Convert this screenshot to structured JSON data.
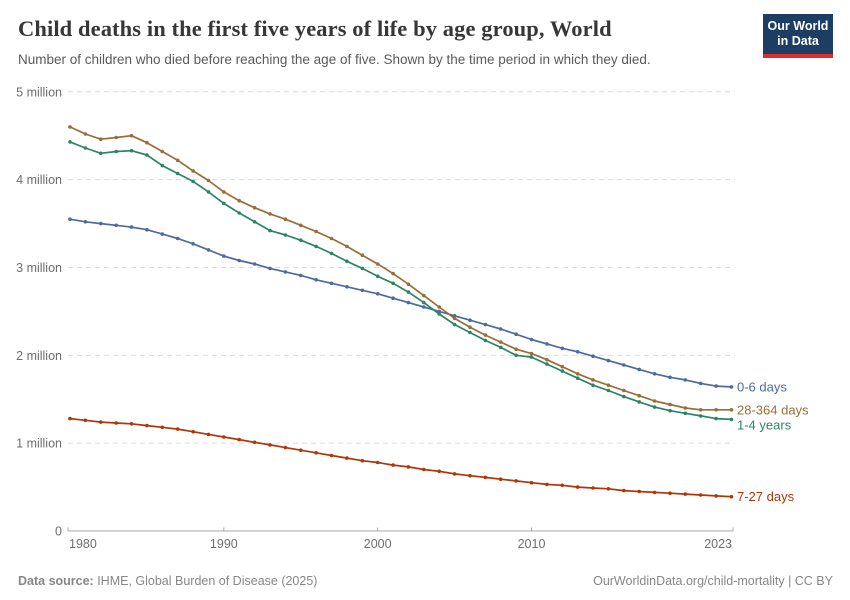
{
  "header": {
    "title": "Child deaths in the first five years of life by age group, World",
    "subtitle": "Number of children who died before reaching the age of five. Shown by the time period in which they died.",
    "logo": {
      "line1": "Our World",
      "line2": "in Data",
      "bg_color": "#1d3d63",
      "bar_color": "#dc2d2d"
    }
  },
  "footer": {
    "source_label": "Data source:",
    "source_text": " IHME, Global Burden of Disease (2025)",
    "right_text": "OurWorldinData.org/child-mortality | CC BY"
  },
  "chart_data": {
    "type": "line",
    "title": "Child deaths in the first five years of life by age group, World",
    "unit": "million deaths per year",
    "grid": "horizontal-dashed",
    "legend_position": "line-end-labels",
    "ylim": [
      0,
      5
    ],
    "xlim": [
      1980,
      2023
    ],
    "x_ticks": [
      1980,
      1990,
      2000,
      2010,
      2023
    ],
    "y_ticks": [
      {
        "value": 0,
        "label": "0"
      },
      {
        "value": 1,
        "label": "1 million"
      },
      {
        "value": 2,
        "label": "2 million"
      },
      {
        "value": 3,
        "label": "3 million"
      },
      {
        "value": 4,
        "label": "4 million"
      },
      {
        "value": 5,
        "label": "5 million"
      }
    ],
    "x": [
      1980,
      1981,
      1982,
      1983,
      1984,
      1985,
      1986,
      1987,
      1988,
      1989,
      1990,
      1991,
      1992,
      1993,
      1994,
      1995,
      1996,
      1997,
      1998,
      1999,
      2000,
      2001,
      2002,
      2003,
      2004,
      2005,
      2006,
      2007,
      2008,
      2009,
      2010,
      2011,
      2012,
      2013,
      2014,
      2015,
      2016,
      2017,
      2018,
      2019,
      2020,
      2021,
      2022,
      2023
    ],
    "series": [
      {
        "name": "0-6 days",
        "color": "#4C6A9C",
        "values": [
          3.55,
          3.52,
          3.5,
          3.48,
          3.46,
          3.43,
          3.38,
          3.33,
          3.27,
          3.2,
          3.13,
          3.08,
          3.04,
          2.99,
          2.95,
          2.91,
          2.86,
          2.82,
          2.78,
          2.74,
          2.7,
          2.65,
          2.6,
          2.55,
          2.5,
          2.45,
          2.4,
          2.35,
          2.3,
          2.24,
          2.18,
          2.13,
          2.08,
          2.04,
          1.99,
          1.94,
          1.89,
          1.84,
          1.79,
          1.75,
          1.72,
          1.68,
          1.65,
          1.64
        ]
      },
      {
        "name": "28-364 days",
        "color": "#996D39",
        "values": [
          4.6,
          4.52,
          4.46,
          4.48,
          4.5,
          4.42,
          4.32,
          4.22,
          4.1,
          3.99,
          3.86,
          3.76,
          3.68,
          3.61,
          3.55,
          3.48,
          3.41,
          3.33,
          3.24,
          3.14,
          3.04,
          2.93,
          2.81,
          2.68,
          2.55,
          2.42,
          2.32,
          2.23,
          2.15,
          2.07,
          2.02,
          1.95,
          1.87,
          1.79,
          1.72,
          1.66,
          1.6,
          1.54,
          1.48,
          1.44,
          1.4,
          1.38,
          1.38,
          1.38
        ]
      },
      {
        "name": "1-4 years",
        "color": "#2C8465",
        "values": [
          4.43,
          4.36,
          4.3,
          4.32,
          4.33,
          4.28,
          4.16,
          4.07,
          3.98,
          3.86,
          3.73,
          3.62,
          3.52,
          3.42,
          3.37,
          3.31,
          3.24,
          3.16,
          3.07,
          2.99,
          2.9,
          2.82,
          2.72,
          2.6,
          2.47,
          2.35,
          2.26,
          2.17,
          2.09,
          2.0,
          1.98,
          1.9,
          1.82,
          1.74,
          1.66,
          1.6,
          1.53,
          1.47,
          1.41,
          1.37,
          1.34,
          1.31,
          1.28,
          1.27
        ]
      },
      {
        "name": "7-27 days",
        "color": "#B13507",
        "values": [
          1.28,
          1.26,
          1.24,
          1.23,
          1.22,
          1.2,
          1.18,
          1.16,
          1.13,
          1.1,
          1.07,
          1.04,
          1.01,
          0.98,
          0.95,
          0.92,
          0.89,
          0.86,
          0.83,
          0.8,
          0.78,
          0.75,
          0.73,
          0.7,
          0.68,
          0.65,
          0.63,
          0.61,
          0.59,
          0.57,
          0.55,
          0.53,
          0.52,
          0.5,
          0.49,
          0.48,
          0.46,
          0.45,
          0.44,
          0.43,
          0.42,
          0.41,
          0.4,
          0.39
        ]
      }
    ]
  }
}
